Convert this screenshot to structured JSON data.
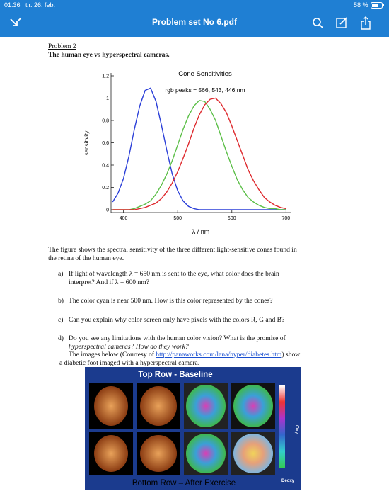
{
  "status_bar": {
    "time": "01:36",
    "date": "tir. 26. feb.",
    "battery": "58 %"
  },
  "nav_bar": {
    "title": "Problem set No 6.pdf"
  },
  "document": {
    "heading": "Problem 2",
    "title": "The human eye vs hyperspectral cameras.",
    "intro": [
      "The figure shows the spectral sensitivity of the three different light-sensitive cones found in",
      "the retina of the human eye."
    ],
    "questions": [
      {
        "label": "a)",
        "lines": [
          "If light of wavelength λ = 650 nm is sent to the eye, what color does the brain",
          "interpret? And if λ = 600 nm?"
        ]
      },
      {
        "label": "b)",
        "lines": [
          "The color cyan is near 500 nm. How is this color represented by the cones?"
        ]
      },
      {
        "label": "c)",
        "lines": [
          "Can you explain why color screen only have pixels with the colors R, G and B?"
        ]
      },
      {
        "label": "d)",
        "lines": [
          "Do you see any limitations with the human color vision? What is the promise of",
          "hyperspectral cameras? How do they work?"
        ],
        "source_before": "The images below (Courtesy of ",
        "source_link": "http://panaworks.com/lana/hyper/diabetes.htm",
        "source_after": ") show",
        "source_end": "a diabetic foot imaged with a hyperspectral camera."
      }
    ]
  },
  "chart_data": {
    "type": "line",
    "title": "Cone Sensitivities",
    "subtitle": "rgb peaks = 566, 543, 446 nm",
    "x_label": "λ / nm",
    "y_label": "sensitivity",
    "x": [
      380,
      390,
      400,
      410,
      420,
      430,
      440,
      450,
      460,
      470,
      480,
      490,
      500,
      510,
      520,
      530,
      540,
      550,
      560,
      570,
      580,
      590,
      600,
      610,
      620,
      630,
      640,
      650,
      660,
      670,
      680,
      690,
      700
    ],
    "series": [
      {
        "name": "blue",
        "color": "#2b3fd8",
        "values": [
          0.07,
          0.15,
          0.28,
          0.48,
          0.72,
          0.93,
          1.07,
          1.09,
          0.97,
          0.76,
          0.53,
          0.32,
          0.17,
          0.08,
          0.03,
          0.01,
          0,
          0,
          0,
          0,
          0,
          0,
          0,
          0,
          0,
          0,
          0,
          0,
          0,
          0,
          0,
          0,
          0
        ]
      },
      {
        "name": "green",
        "color": "#5cbf48",
        "values": [
          0,
          0,
          0,
          0,
          0.01,
          0.03,
          0.05,
          0.08,
          0.14,
          0.22,
          0.32,
          0.44,
          0.58,
          0.72,
          0.84,
          0.93,
          0.98,
          0.97,
          0.9,
          0.8,
          0.66,
          0.52,
          0.39,
          0.27,
          0.18,
          0.11,
          0.07,
          0.04,
          0.02,
          0.01,
          0.01,
          0,
          0
        ]
      },
      {
        "name": "red",
        "color": "#de2a2e",
        "values": [
          0,
          0,
          0,
          0,
          0,
          0.01,
          0.02,
          0.04,
          0.06,
          0.1,
          0.16,
          0.24,
          0.34,
          0.46,
          0.59,
          0.73,
          0.85,
          0.94,
          0.99,
          1.0,
          0.95,
          0.87,
          0.75,
          0.62,
          0.49,
          0.36,
          0.26,
          0.18,
          0.11,
          0.07,
          0.04,
          0.02,
          0.01
        ]
      }
    ],
    "xlim": [
      377,
      710
    ],
    "ylim": [
      0,
      1.2
    ],
    "xticks": [
      400,
      500,
      600,
      700
    ],
    "yticks": [
      0,
      0.2,
      0.4,
      0.6,
      0.8,
      1,
      1.2
    ]
  },
  "figure": {
    "top_caption": "Top Row - Baseline",
    "bottom_caption": "Bottom Row – After Exercise",
    "scale_top": "Oxy",
    "scale_bottom": "Deoxy"
  }
}
